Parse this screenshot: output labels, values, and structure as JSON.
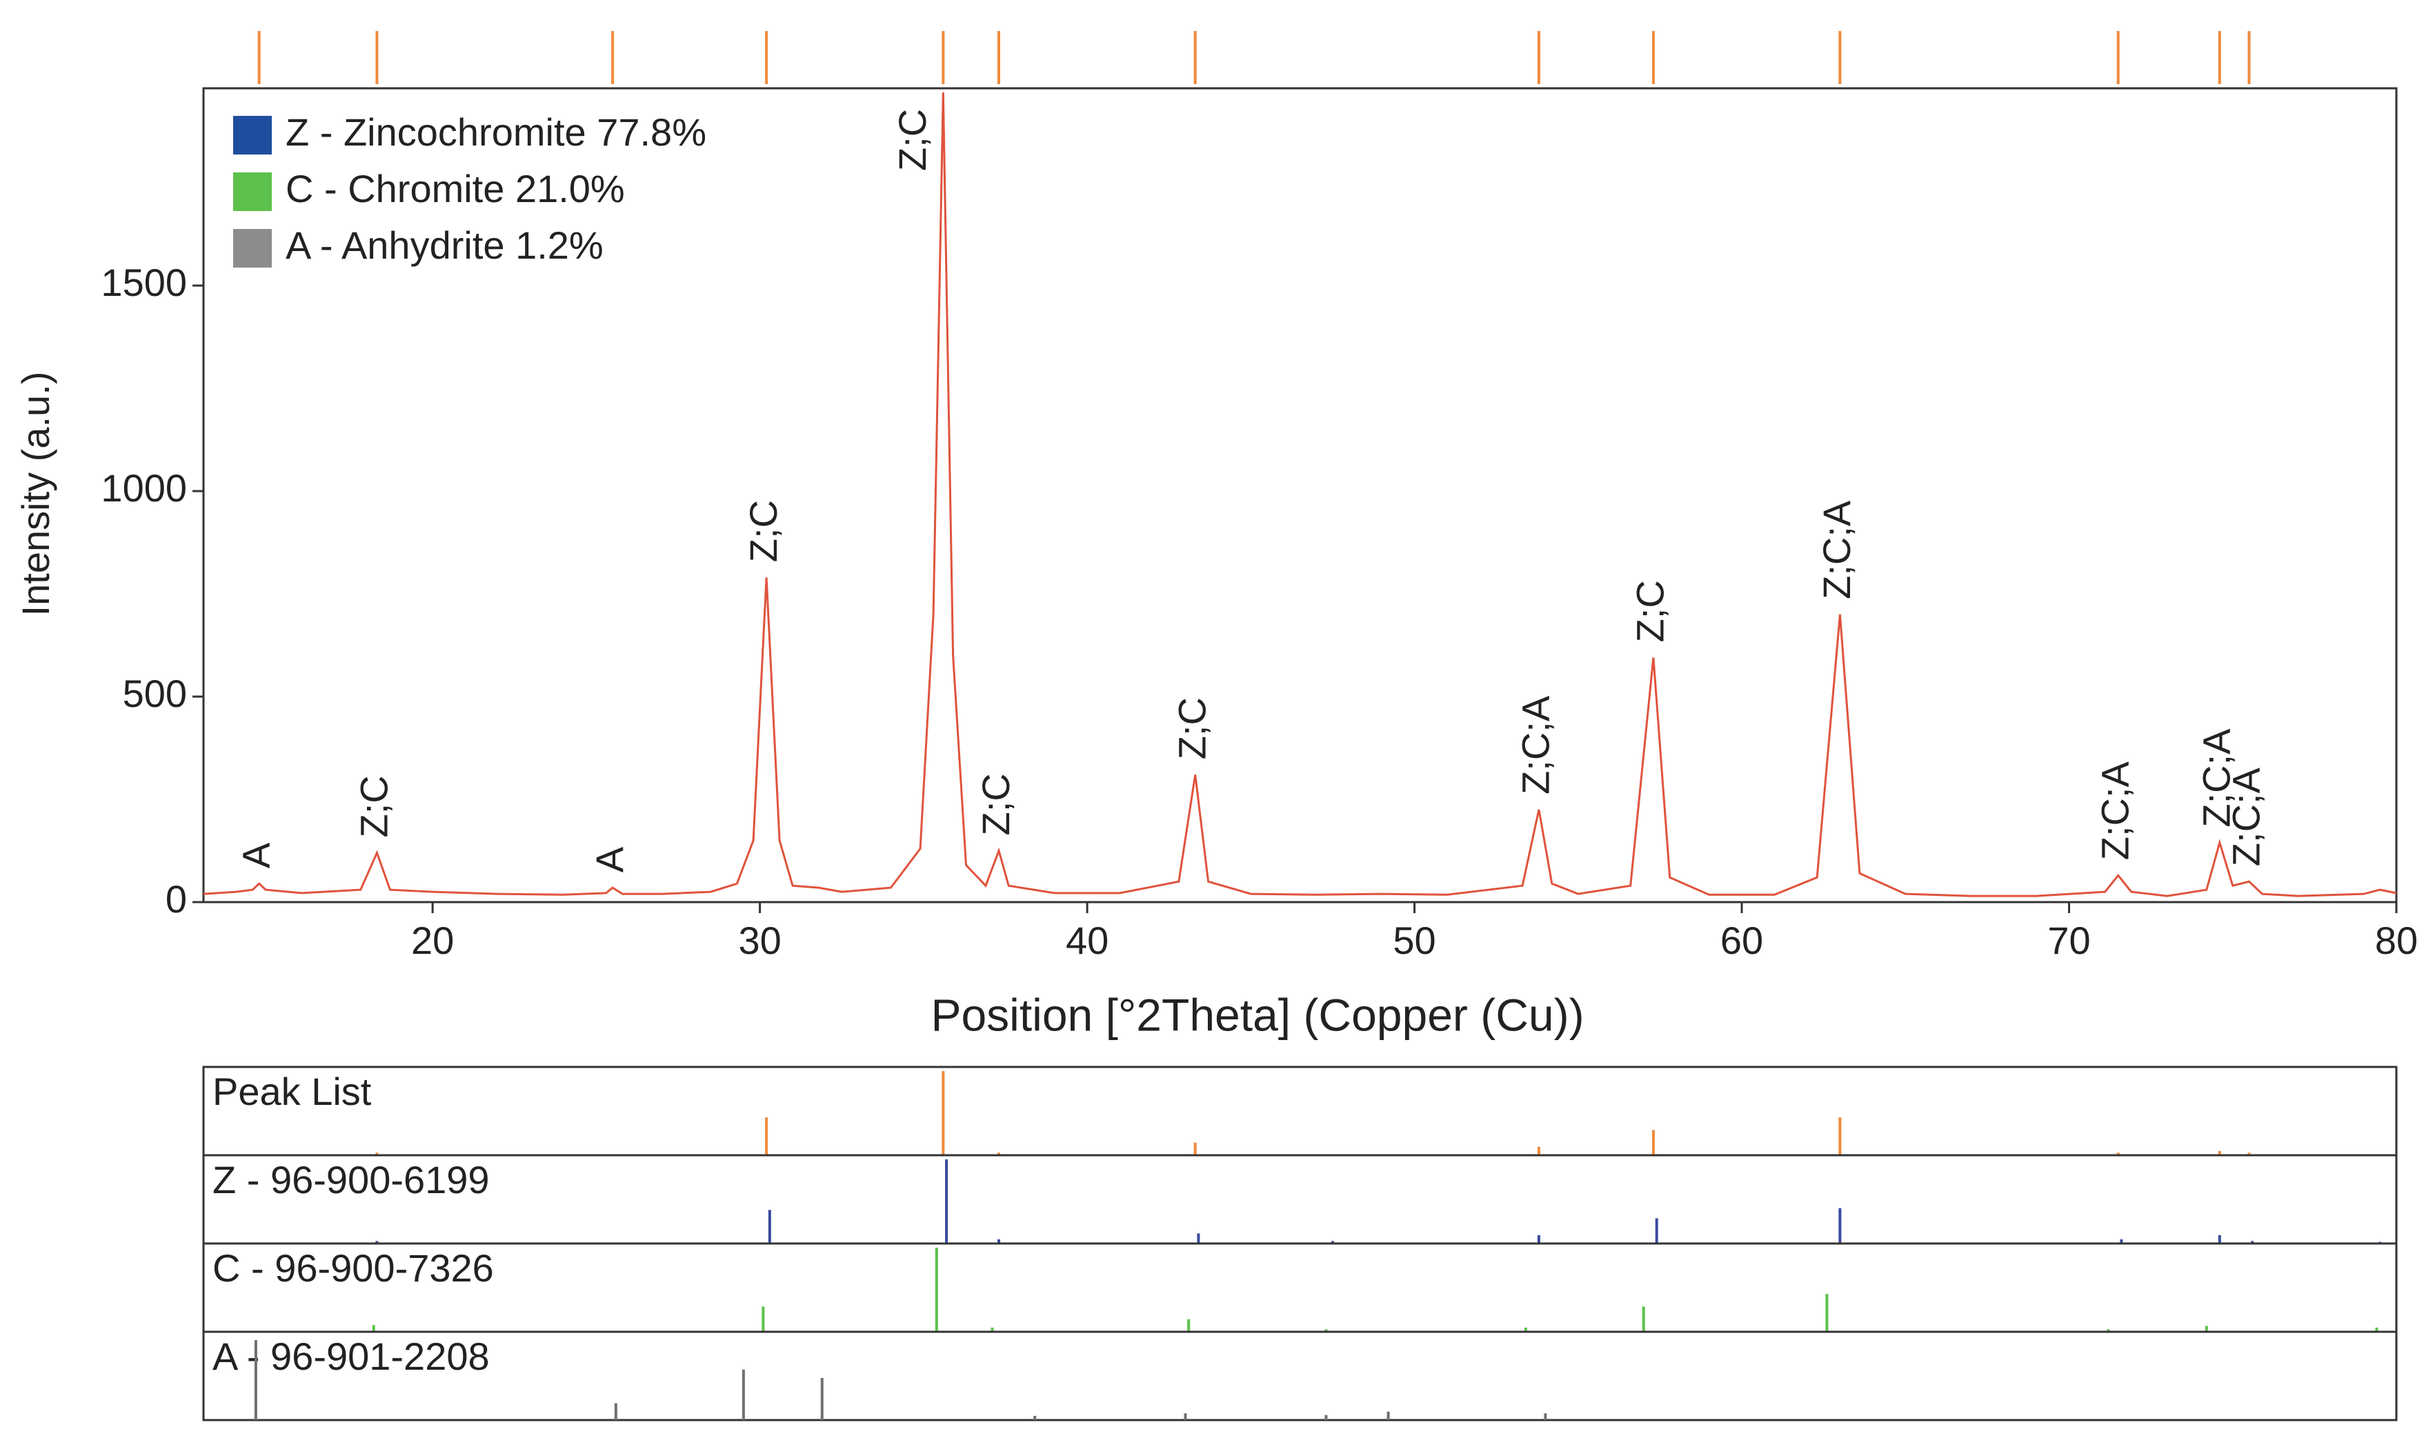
{
  "chart_data": {
    "type": "line",
    "xlabel": "Position [°2Theta] (Copper (Cu))",
    "ylabel": "Intensity (a.u.)",
    "xlim": [
      13,
      80
    ],
    "xticks": [
      20,
      30,
      40,
      50,
      60,
      70,
      80
    ],
    "ylim": [
      0,
      1980
    ],
    "yticks": [
      0,
      500,
      1000,
      1500
    ],
    "color": "#e0533c",
    "x": [
      13,
      14,
      14.5,
      14.7,
      14.9,
      16,
      17.8,
      18.3,
      18.7,
      20,
      22,
      24,
      25.3,
      25.5,
      25.8,
      27,
      28.5,
      29.3,
      29.8,
      30.2,
      30.6,
      31,
      31.8,
      32.5,
      34,
      34.9,
      35.3,
      35.6,
      35.9,
      36.3,
      36.9,
      37.3,
      37.6,
      39,
      41,
      42.8,
      43.3,
      43.7,
      45,
      47,
      49,
      51,
      53.3,
      53.8,
      54.2,
      55,
      56.6,
      57.3,
      57.8,
      59,
      61,
      62.3,
      63.0,
      63.6,
      65,
      67,
      69,
      71.1,
      71.5,
      71.9,
      73,
      74.2,
      74.6,
      75.0,
      75.5,
      75.9,
      77,
      79,
      79.5,
      80
    ],
    "values": [
      20,
      25,
      30,
      45,
      30,
      22,
      30,
      120,
      30,
      25,
      20,
      18,
      22,
      35,
      20,
      20,
      25,
      45,
      150,
      790,
      150,
      40,
      35,
      25,
      35,
      130,
      700,
      1970,
      600,
      90,
      40,
      125,
      40,
      22,
      22,
      50,
      310,
      50,
      20,
      18,
      20,
      18,
      40,
      225,
      45,
      20,
      40,
      595,
      60,
      18,
      18,
      60,
      700,
      70,
      20,
      15,
      15,
      25,
      65,
      25,
      15,
      30,
      145,
      40,
      50,
      20,
      15,
      20,
      30,
      22
    ],
    "marker_color": "#f08a3c",
    "peaks": [
      {
        "label": "A",
        "position": 14.7
      },
      {
        "label": "Z;C",
        "position": 18.3
      },
      {
        "label": "A",
        "position": 25.5
      },
      {
        "label": "Z;C",
        "position": 30.2
      },
      {
        "label": "Z;C",
        "position": 35.6
      },
      {
        "label": "Z;C",
        "position": 37.3
      },
      {
        "label": "Z;C",
        "position": 43.3
      },
      {
        "label": "Z;C;A",
        "position": 53.8
      },
      {
        "label": "Z;C",
        "position": 57.3
      },
      {
        "label": "Z;C;A",
        "position": 63.0
      },
      {
        "label": "Z;C;A",
        "position": 71.5
      },
      {
        "label": "Z;C;A",
        "position": 74.6
      },
      {
        "label": "Z;C;A",
        "position": 75.5
      }
    ],
    "legend": [
      {
        "name": "Z - Zincochromite 77.8%",
        "color": "#1f4e9e"
      },
      {
        "name": "C - Chromite 21.0%",
        "color": "#5cc14a"
      },
      {
        "name": "A - Anhydrite 1.2%",
        "color": "#8c8c8c"
      }
    ],
    "reference_panels": [
      {
        "title": "Peak List",
        "color": "#f08a3c",
        "positions": [
          18.3,
          30.2,
          35.6,
          37.3,
          43.3,
          53.8,
          57.3,
          63.0,
          71.5,
          74.6,
          75.5
        ],
        "heights": [
          3,
          45,
          100,
          3,
          15,
          10,
          30,
          45,
          3,
          5,
          3
        ]
      },
      {
        "title": "Z - 96-900-6199",
        "color": "#3a4a9e",
        "positions": [
          18.3,
          30.3,
          35.7,
          37.3,
          43.4,
          47.5,
          53.8,
          57.4,
          63.0,
          71.6,
          74.6,
          75.6,
          79.5
        ],
        "heights": [
          3,
          40,
          100,
          5,
          12,
          3,
          10,
          30,
          42,
          5,
          10,
          3,
          2
        ]
      },
      {
        "title": "C - 96-900-7326",
        "color": "#5cc14a",
        "positions": [
          18.2,
          30.1,
          35.4,
          37.1,
          43.1,
          47.3,
          53.4,
          57.0,
          62.6,
          71.2,
          74.2,
          79.4
        ],
        "heights": [
          8,
          30,
          100,
          5,
          15,
          3,
          5,
          30,
          45,
          3,
          7,
          5
        ]
      },
      {
        "title": "A - 96-901-2208",
        "color": "#707070",
        "positions": [
          14.6,
          25.6,
          29.5,
          31.9,
          38.4,
          43.0,
          47.3,
          49.2,
          54.0
        ],
        "heights": [
          95,
          20,
          60,
          50,
          5,
          8,
          6,
          10,
          8
        ]
      }
    ]
  }
}
